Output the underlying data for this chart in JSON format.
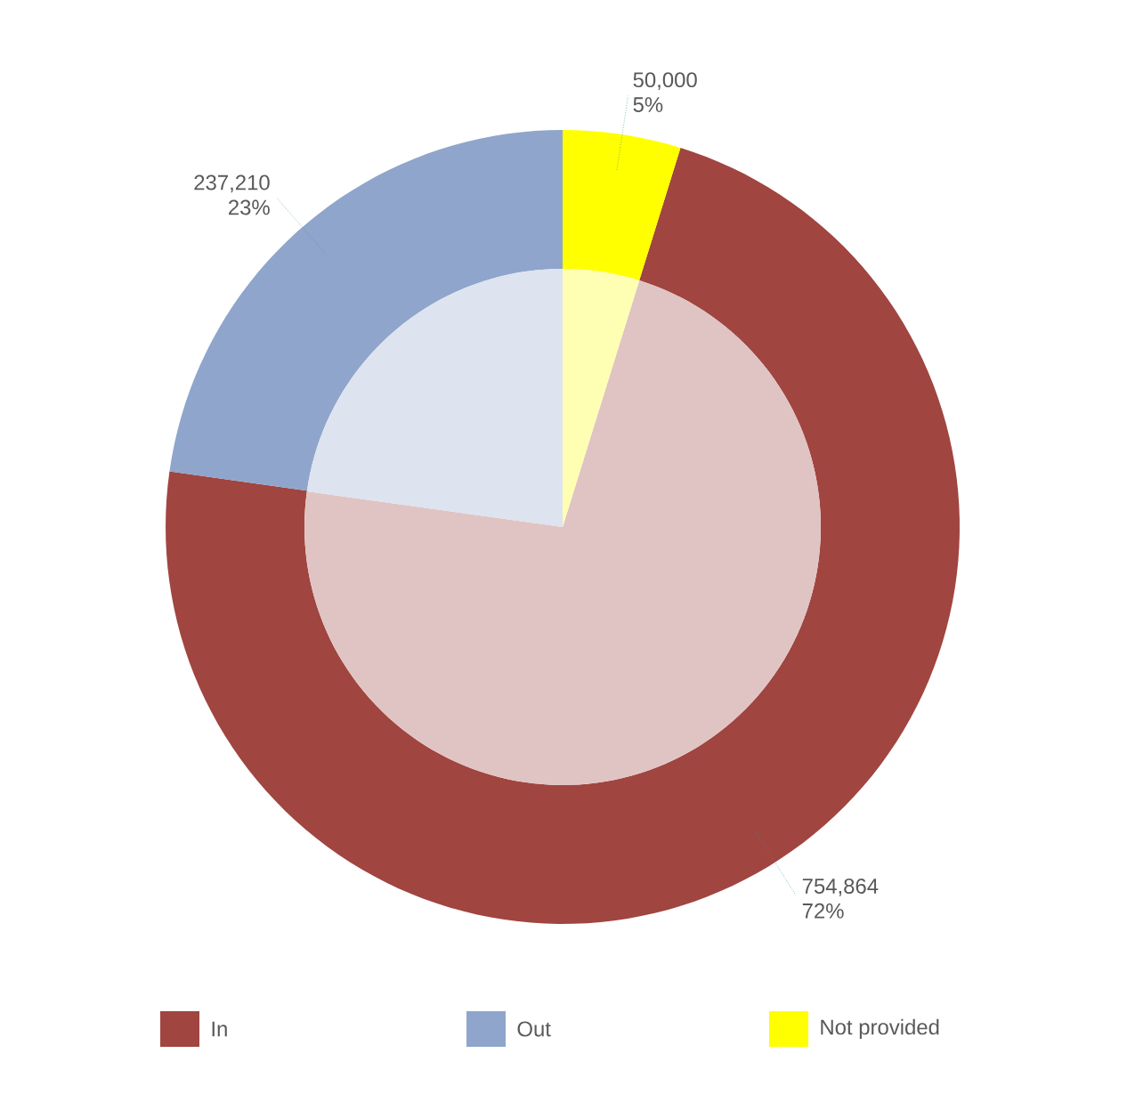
{
  "chart_data": {
    "type": "donut",
    "categories": [
      "In",
      "Out",
      "Not provided"
    ],
    "series": [
      {
        "values": [
          754864,
          237210,
          50000
        ],
        "colors": [
          "#a04540",
          "#8fa5cc",
          "#ffff00"
        ],
        "value_labels": [
          "754,864 72%",
          "237,210 23%",
          "50,000 5%"
        ]
      },
      {
        "values": [
          72.4,
          22.8,
          4.8
        ],
        "colors": [
          "#e0c4c3",
          "#dde3ef",
          "#ffffb3"
        ]
      }
    ],
    "legend": "bottom"
  }
}
